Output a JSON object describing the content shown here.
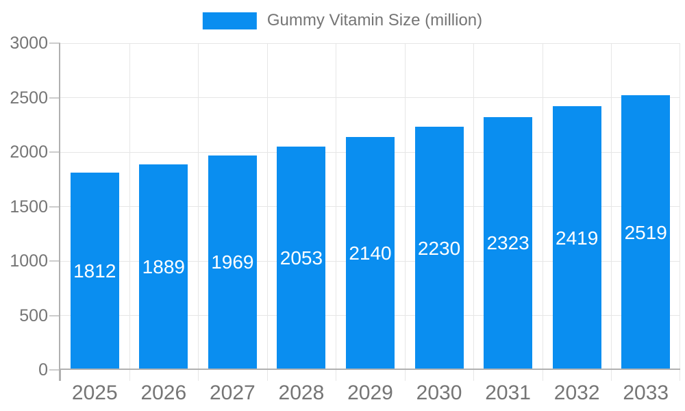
{
  "chart_data": {
    "type": "bar",
    "title": "",
    "legend": {
      "label": "Gummy Vitamin Size (million)",
      "position": "top"
    },
    "categories": [
      "2025",
      "2026",
      "2027",
      "2028",
      "2029",
      "2030",
      "2031",
      "2032",
      "2033"
    ],
    "series": [
      {
        "name": "Gummy Vitamin Size (million)",
        "values": [
          1812,
          1889,
          1969,
          2053,
          2140,
          2230,
          2323,
          2419,
          2519
        ]
      }
    ],
    "value_labels_visible": true,
    "xlabel": "",
    "ylabel": "",
    "ylim": [
      0,
      3000
    ],
    "yticks": [
      0,
      500,
      1000,
      1500,
      2000,
      2500,
      3000
    ],
    "grid": true,
    "colors": {
      "bar": "#0a8ef0",
      "value_label": "#ffffff",
      "axis_text": "#757575",
      "legend_text": "#757575",
      "gridline": "#e6e6e6",
      "axis_line": "#b0b0b0",
      "tick": "#cccccc",
      "background": "#ffffff"
    }
  }
}
